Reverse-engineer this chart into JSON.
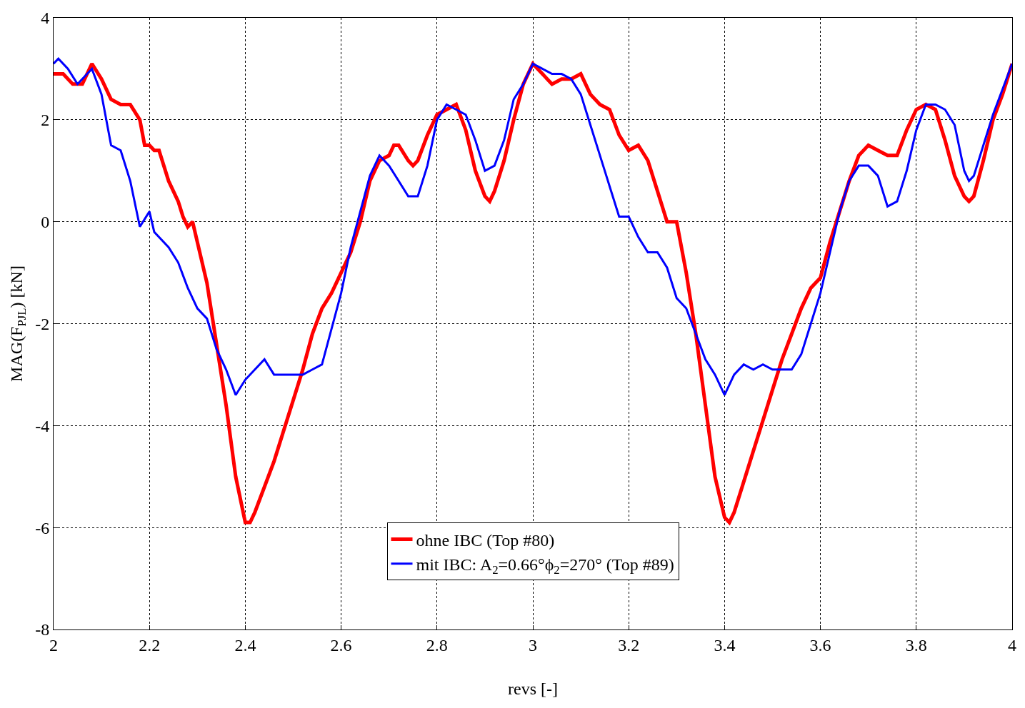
{
  "chart_data": {
    "type": "line",
    "xlabel": "revs [-]",
    "ylabel": "MAG(F$_{PJL}$) [kN]",
    "xlim": [
      2,
      4
    ],
    "xticks": [
      2,
      2.2,
      2.4,
      2.6,
      2.8,
      3,
      3.2,
      3.4,
      3.6,
      3.8,
      4
    ],
    "ylim": [
      -8,
      4
    ],
    "yticks": [
      -8,
      -6,
      -4,
      -2,
      0,
      2,
      4
    ],
    "grid": true,
    "legend": "bottom",
    "line_style": "solid",
    "series": [
      {
        "name": "ohne IBC (Top #80)",
        "color": "#ff0000",
        "x": [
          2.0,
          2.02,
          2.04,
          2.06,
          2.08,
          2.1,
          2.12,
          2.14,
          2.16,
          2.18,
          2.19,
          2.2,
          2.21,
          2.22,
          2.24,
          2.26,
          2.27,
          2.28,
          2.29,
          2.3,
          2.32,
          2.34,
          2.36,
          2.38,
          2.4,
          2.41,
          2.42,
          2.44,
          2.46,
          2.48,
          2.5,
          2.52,
          2.54,
          2.56,
          2.58,
          2.6,
          2.62,
          2.64,
          2.66,
          2.68,
          2.7,
          2.71,
          2.72,
          2.74,
          2.75,
          2.76,
          2.78,
          2.8,
          2.82,
          2.84,
          2.86,
          2.88,
          2.9,
          2.91,
          2.92,
          2.94,
          2.96,
          2.98,
          3.0,
          3.02,
          3.04,
          3.06,
          3.08,
          3.1,
          3.12,
          3.14,
          3.16,
          3.18,
          3.2,
          3.22,
          3.24,
          3.26,
          3.28,
          3.3,
          3.32,
          3.34,
          3.36,
          3.38,
          3.4,
          3.41,
          3.42,
          3.44,
          3.46,
          3.48,
          3.5,
          3.52,
          3.54,
          3.56,
          3.58,
          3.6,
          3.62,
          3.64,
          3.66,
          3.68,
          3.7,
          3.72,
          3.74,
          3.76,
          3.78,
          3.8,
          3.82,
          3.84,
          3.86,
          3.88,
          3.9,
          3.91,
          3.92,
          3.94,
          3.96,
          3.98,
          4.0
        ],
        "values": [
          2.9,
          2.9,
          2.7,
          2.7,
          3.1,
          2.8,
          2.4,
          2.3,
          2.3,
          2.0,
          1.5,
          1.5,
          1.4,
          1.4,
          0.8,
          0.4,
          0.1,
          -0.1,
          0.0,
          -0.4,
          -1.2,
          -2.4,
          -3.6,
          -5.0,
          -5.9,
          -5.9,
          -5.7,
          -5.2,
          -4.7,
          -4.1,
          -3.5,
          -2.9,
          -2.2,
          -1.7,
          -1.4,
          -1.0,
          -0.6,
          0.0,
          0.8,
          1.2,
          1.3,
          1.5,
          1.5,
          1.2,
          1.1,
          1.2,
          1.7,
          2.1,
          2.2,
          2.3,
          1.8,
          1.0,
          0.5,
          0.4,
          0.6,
          1.2,
          2.0,
          2.7,
          3.1,
          2.9,
          2.7,
          2.8,
          2.8,
          2.9,
          2.5,
          2.3,
          2.2,
          1.7,
          1.4,
          1.5,
          1.2,
          0.6,
          0.0,
          0.0,
          -1.0,
          -2.2,
          -3.6,
          -5.0,
          -5.8,
          -5.9,
          -5.7,
          -5.1,
          -4.5,
          -3.9,
          -3.3,
          -2.7,
          -2.2,
          -1.7,
          -1.3,
          -1.1,
          -0.4,
          0.2,
          0.8,
          1.3,
          1.5,
          1.4,
          1.3,
          1.3,
          1.8,
          2.2,
          2.3,
          2.2,
          1.6,
          0.9,
          0.5,
          0.4,
          0.5,
          1.2,
          2.0,
          2.5,
          3.1
        ]
      },
      {
        "name": "mit IBC: A$_{2}$=0.66°ϕ$_{2}$=270° (Top #89)",
        "color": "#0000ff",
        "x": [
          2.0,
          2.01,
          2.03,
          2.05,
          2.07,
          2.08,
          2.1,
          2.12,
          2.14,
          2.16,
          2.18,
          2.2,
          2.21,
          2.24,
          2.26,
          2.28,
          2.3,
          2.32,
          2.34,
          2.36,
          2.38,
          2.4,
          2.42,
          2.44,
          2.46,
          2.48,
          2.5,
          2.52,
          2.54,
          2.56,
          2.58,
          2.6,
          2.62,
          2.64,
          2.66,
          2.68,
          2.7,
          2.72,
          2.74,
          2.76,
          2.78,
          2.8,
          2.82,
          2.84,
          2.86,
          2.88,
          2.9,
          2.92,
          2.94,
          2.96,
          2.98,
          3.0,
          3.02,
          3.04,
          3.06,
          3.08,
          3.1,
          3.12,
          3.14,
          3.16,
          3.18,
          3.2,
          3.22,
          3.24,
          3.26,
          3.28,
          3.3,
          3.32,
          3.34,
          3.36,
          3.38,
          3.4,
          3.42,
          3.44,
          3.46,
          3.48,
          3.5,
          3.52,
          3.54,
          3.56,
          3.58,
          3.6,
          3.62,
          3.64,
          3.66,
          3.68,
          3.7,
          3.72,
          3.74,
          3.76,
          3.78,
          3.8,
          3.82,
          3.84,
          3.86,
          3.88,
          3.9,
          3.91,
          3.92,
          3.94,
          3.96,
          3.98,
          4.0
        ],
        "values": [
          3.1,
          3.2,
          3.0,
          2.7,
          2.9,
          3.0,
          2.5,
          1.5,
          1.4,
          0.8,
          -0.1,
          0.2,
          -0.2,
          -0.5,
          -0.8,
          -1.3,
          -1.7,
          -1.9,
          -2.5,
          -2.9,
          -3.4,
          -3.1,
          -2.9,
          -2.7,
          -3.0,
          -3.0,
          -3.0,
          -3.0,
          -2.9,
          -2.8,
          -2.1,
          -1.4,
          -0.5,
          0.2,
          0.9,
          1.3,
          1.1,
          0.8,
          0.5,
          0.5,
          1.1,
          2.0,
          2.3,
          2.2,
          2.1,
          1.6,
          1.0,
          1.1,
          1.6,
          2.4,
          2.7,
          3.1,
          3.0,
          2.9,
          2.9,
          2.8,
          2.5,
          1.9,
          1.3,
          0.7,
          0.1,
          0.1,
          -0.3,
          -0.6,
          -0.6,
          -0.9,
          -1.5,
          -1.7,
          -2.2,
          -2.7,
          -3.0,
          -3.4,
          -3.0,
          -2.8,
          -2.9,
          -2.8,
          -2.9,
          -2.9,
          -2.9,
          -2.6,
          -2.0,
          -1.4,
          -0.6,
          0.2,
          0.8,
          1.1,
          1.1,
          0.9,
          0.3,
          0.4,
          1.0,
          1.8,
          2.3,
          2.3,
          2.2,
          1.9,
          1.0,
          0.8,
          0.9,
          1.5,
          2.1,
          2.6,
          3.1
        ]
      }
    ]
  }
}
